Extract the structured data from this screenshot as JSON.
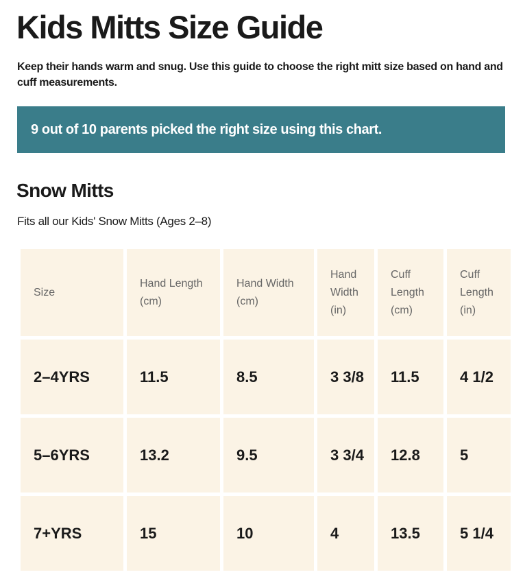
{
  "header": {
    "title": "Kids Mitts Size Guide",
    "subtitle": "Keep their hands warm and snug. Use this guide to choose the right mitt size based on hand and cuff measurements."
  },
  "banner": {
    "text": "9 out of 10 parents picked the right size using this chart."
  },
  "section": {
    "title": "Snow Mitts",
    "description": "Fits all our Kids' Snow Mitts (Ages 2–8)"
  },
  "table": {
    "columns": [
      "Size",
      "Hand Length (cm)",
      "Hand Width (cm)",
      "Hand Width (in)",
      "Cuff Length (cm)",
      "Cuff Length (in)"
    ],
    "rows": [
      [
        "2–4YRS",
        "11.5",
        "8.5",
        "3 3/8",
        "11.5",
        "4 1/2"
      ],
      [
        "5–6YRS",
        "13.2",
        "9.5",
        "3 3/4",
        "12.8",
        "5"
      ],
      [
        "7+YRS",
        "15",
        "10",
        "4",
        "13.5",
        "5 1/4"
      ]
    ]
  }
}
